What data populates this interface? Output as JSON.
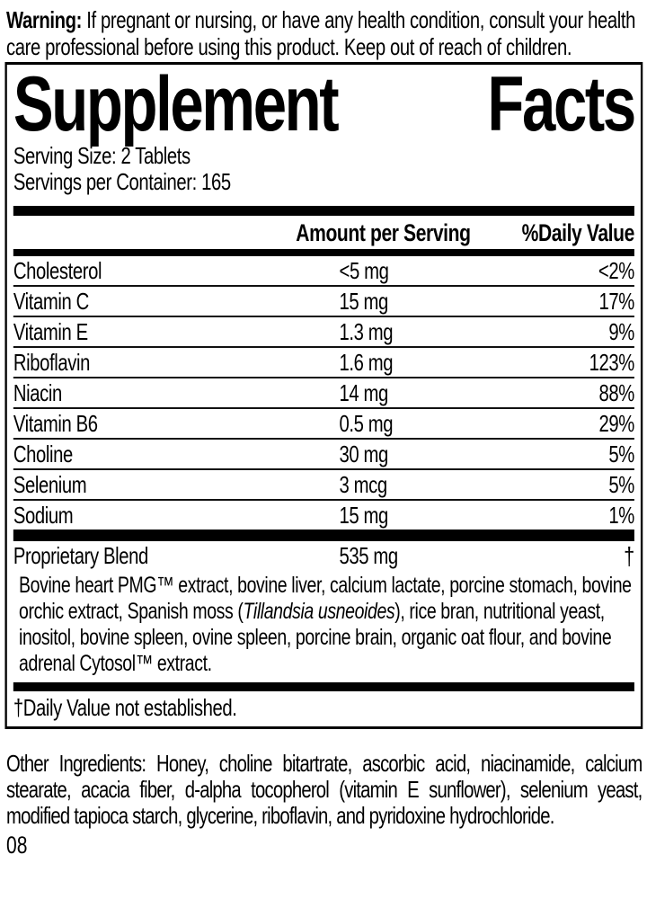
{
  "warning": {
    "label": "Warning:",
    "text": " If pregnant or nursing, or have any health condition, consult your health care professional before using this product. Keep out of reach of children."
  },
  "supplement_facts": {
    "title_words": [
      "Supplement",
      "Facts"
    ],
    "serving_size": "Serving Size: 2 Tablets",
    "servings_per_container": "Servings per Container: 165",
    "columns": {
      "amount": "Amount per Serving",
      "daily_value": "%Daily Value"
    },
    "nutrients": [
      {
        "name": "Cholesterol",
        "amount": "<5 mg",
        "dv": "<2%"
      },
      {
        "name": "Vitamin C",
        "amount": "15 mg",
        "dv": "17%"
      },
      {
        "name": "Vitamin E",
        "amount": "1.3 mg",
        "dv": "9%"
      },
      {
        "name": "Riboflavin",
        "amount": "1.6 mg",
        "dv": "123%"
      },
      {
        "name": "Niacin",
        "amount": "14 mg",
        "dv": "88%"
      },
      {
        "name": "Vitamin B6",
        "amount": "0.5 mg",
        "dv": "29%"
      },
      {
        "name": "Choline",
        "amount": "30 mg",
        "dv": "5%"
      },
      {
        "name": "Selenium",
        "amount": "3 mcg",
        "dv": "5%"
      },
      {
        "name": "Sodium",
        "amount": "15 mg",
        "dv": "1%"
      }
    ],
    "proprietary_blend": {
      "name": "Proprietary Blend",
      "amount": "535 mg",
      "dv": "†",
      "description_part1": "Bovine heart PMG™ extract, bovine liver, calcium lactate, porcine stomach, bovine orchic extract, Spanish moss (",
      "description_italic": "Tillandsia usneoides",
      "description_part2": "), rice bran, nutritional yeast, inositol, bovine spleen, ovine spleen, porcine brain, organic oat flour, and bovine adrenal Cytosol™ extract."
    },
    "footnote": "†Daily Value not established."
  },
  "other_ingredients": "Other Ingredients: Honey, choline bitartrate, ascorbic acid, niacinamide, calcium stearate, acacia fiber, d-alpha tocopherol (vitamin E sunflower), selenium yeast, modified tapioca starch, glycerine, riboflavin, and pyridoxine hydrochloride.",
  "footer_code": "08",
  "colors": {
    "text": "#000000",
    "background": "#ffffff",
    "divider": "#000000"
  }
}
